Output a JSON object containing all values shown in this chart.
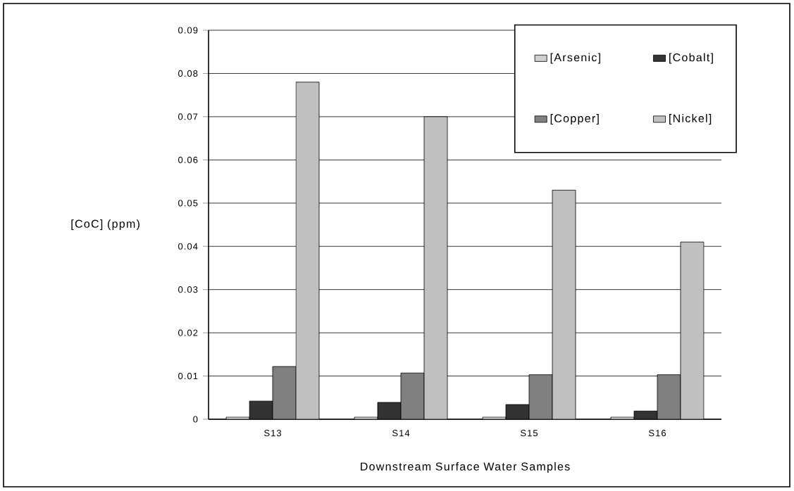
{
  "chart_data": {
    "type": "bar",
    "xlabel": "Downstream Surface Water Samples",
    "ylabel": "[CoC] (ppm)",
    "categories": [
      "S13",
      "S14",
      "S15",
      "S16"
    ],
    "series": [
      {
        "name": "[Arsenic]",
        "color": "#d0d0d0",
        "values": [
          0.0005,
          0.0005,
          0.0005,
          0.0005
        ]
      },
      {
        "name": "[Cobalt]",
        "color": "#333333",
        "values": [
          0.0042,
          0.0039,
          0.0034,
          0.0019
        ]
      },
      {
        "name": "[Copper]",
        "color": "#808080",
        "values": [
          0.0122,
          0.0107,
          0.0103,
          0.0103
        ]
      },
      {
        "name": "[Nickel]",
        "color": "#c0c0c0",
        "values": [
          0.078,
          0.07,
          0.053,
          0.041
        ]
      }
    ],
    "ylim": [
      0,
      0.09
    ],
    "yticks": [
      0,
      0.01,
      0.02,
      0.03,
      0.04,
      0.05,
      0.06,
      0.07,
      0.08,
      0.09
    ],
    "grid": "y",
    "legend": "top right"
  }
}
